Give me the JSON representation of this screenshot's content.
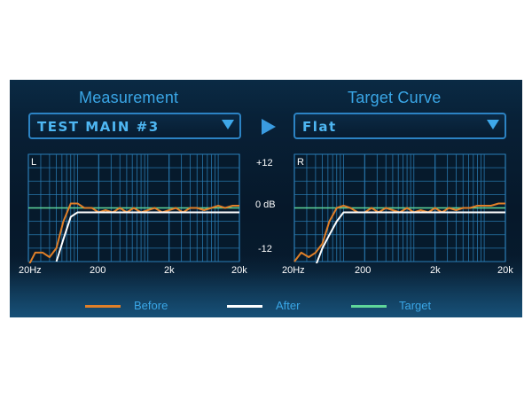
{
  "left_section": {
    "title": "Measurement",
    "select_value": "TEST MAIN #3",
    "channel": "L"
  },
  "right_section": {
    "title": "Target Curve",
    "select_value": "Flat",
    "channel": "R"
  },
  "y_ticks": {
    "top": "+12",
    "mid": "0 dB",
    "bottom": "-12"
  },
  "x_ticks": [
    "20Hz",
    "200",
    "2k",
    "20k"
  ],
  "legend": [
    {
      "label": "Before",
      "color": "#e07f28"
    },
    {
      "label": "After",
      "color": "#ffffff"
    },
    {
      "label": "Target",
      "color": "#5fd69a"
    }
  ],
  "colors": {
    "accent": "#3aa6e6",
    "grid": "#2b7fb8",
    "before": "#e07f28",
    "after": "#ffffff",
    "target": "#5fd69a"
  },
  "icons": {
    "dropdown": "chevron-down-icon",
    "apply": "play-arrow-icon"
  },
  "chart_data": [
    {
      "type": "line",
      "title": "",
      "panel_label": "L",
      "x_scale": "log",
      "xlim": [
        20,
        20000
      ],
      "ylim": [
        -12,
        12
      ],
      "x_ticks": [
        "20Hz",
        "200",
        "2k",
        "20k"
      ],
      "y_ticks": [
        "+12",
        "0 dB",
        "-12"
      ],
      "grid": true,
      "series": [
        {
          "name": "Before",
          "x": [
            20,
            25,
            32,
            40,
            50,
            63,
            80,
            100,
            125,
            160,
            200,
            250,
            315,
            400,
            500,
            630,
            800,
            1000,
            1250,
            1600,
            2000,
            2500,
            3150,
            4000,
            5000,
            6300,
            8000,
            10000,
            12500,
            16000,
            20000
          ],
          "y": [
            -13,
            -10,
            -10,
            -11,
            -9,
            -3,
            1,
            1,
            0,
            0,
            -1,
            -0.5,
            -1,
            0,
            -1,
            0,
            -1,
            -0.5,
            0,
            -1,
            -0.5,
            0,
            -1,
            0,
            0,
            -0.5,
            0,
            0.5,
            0,
            0.5,
            0.5
          ]
        },
        {
          "name": "After",
          "x": [
            50,
            63,
            80,
            100,
            125,
            160,
            200,
            250,
            315,
            400,
            500,
            630,
            800,
            1000,
            1250,
            1600,
            2000,
            2500,
            3150,
            4000,
            5000,
            6300,
            8000,
            10000,
            12500,
            16000,
            20000
          ],
          "y": [
            -12,
            -7,
            -2,
            -1,
            -1,
            -1,
            -1,
            -1,
            -1,
            -1,
            -1,
            -1,
            -1,
            -1,
            -1,
            -1,
            -1,
            -1,
            -1,
            -1,
            -1,
            -1,
            -1,
            -1,
            -1,
            -1,
            -1
          ]
        },
        {
          "name": "Target",
          "x": [
            20,
            20000
          ],
          "y": [
            0,
            0
          ]
        }
      ]
    },
    {
      "type": "line",
      "title": "",
      "panel_label": "R",
      "x_scale": "log",
      "xlim": [
        20,
        20000
      ],
      "ylim": [
        -12,
        12
      ],
      "x_ticks": [
        "20Hz",
        "200",
        "2k",
        "20k"
      ],
      "y_ticks": [
        "+12",
        "0 dB",
        "-12"
      ],
      "grid": true,
      "series": [
        {
          "name": "Before",
          "x": [
            20,
            25,
            32,
            40,
            50,
            63,
            80,
            100,
            125,
            160,
            200,
            250,
            315,
            400,
            500,
            630,
            800,
            1000,
            1250,
            1600,
            2000,
            2500,
            3150,
            4000,
            5000,
            6300,
            8000,
            10000,
            12500,
            16000,
            20000
          ],
          "y": [
            -12,
            -10,
            -11,
            -10,
            -8,
            -3,
            0,
            0.5,
            0,
            -1,
            -1,
            0,
            -1,
            0,
            -0.5,
            -1,
            0,
            -1,
            -0.5,
            -1,
            0,
            -1,
            0,
            -0.5,
            0,
            0,
            0.5,
            0.5,
            0.5,
            1,
            1
          ]
        },
        {
          "name": "After",
          "x": [
            40,
            50,
            63,
            80,
            100,
            125,
            160,
            200,
            250,
            315,
            400,
            500,
            630,
            800,
            1000,
            1250,
            1600,
            2000,
            2500,
            3150,
            4000,
            5000,
            6300,
            8000,
            10000,
            12500,
            16000,
            20000
          ],
          "y": [
            -13,
            -9,
            -6,
            -3,
            -1,
            -1,
            -1,
            -1,
            -1,
            -1,
            -1,
            -1,
            -1,
            -1,
            -1,
            -1,
            -1,
            -1,
            -1,
            -1,
            -1,
            -1,
            -1,
            -1,
            -1,
            -1,
            -1,
            -1
          ]
        },
        {
          "name": "Target",
          "x": [
            20,
            20000
          ],
          "y": [
            0,
            0
          ]
        }
      ]
    }
  ]
}
